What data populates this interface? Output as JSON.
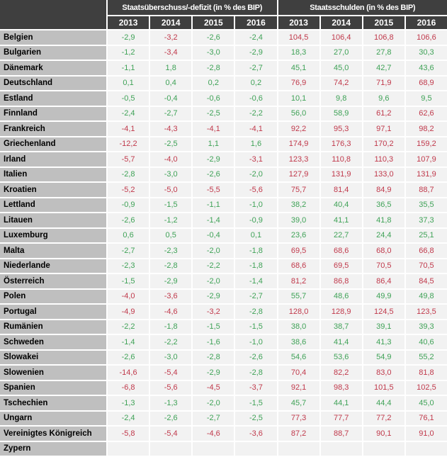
{
  "chart_data": {
    "type": "table",
    "group_headers": [
      "Staatsüberschuss/-defizit (in % des BIP)",
      "Staatsschulden (in % des BIP)"
    ],
    "years": [
      "2013",
      "2014",
      "2015",
      "2016"
    ],
    "color_rules": {
      "deficit_red_if_below": -3.0,
      "debt_red_if_above": 60.0
    },
    "rows": [
      {
        "country": "Belgien",
        "deficit": [
          "-2,9",
          "-3,2",
          "-2,6",
          "-2,4"
        ],
        "debt": [
          "104,5",
          "106,4",
          "106,8",
          "106,6"
        ]
      },
      {
        "country": "Bulgarien",
        "deficit": [
          "-1,2",
          "-3,4",
          "-3,0",
          "-2,9"
        ],
        "debt": [
          "18,3",
          "27,0",
          "27,8",
          "30,3"
        ]
      },
      {
        "country": "Dänemark",
        "deficit": [
          "-1,1",
          "1,8",
          "-2,8",
          "-2,7"
        ],
        "debt": [
          "45,1",
          "45,0",
          "42,7",
          "43,6"
        ]
      },
      {
        "country": "Deutschland",
        "deficit": [
          "0,1",
          "0,4",
          "0,2",
          "0,2"
        ],
        "debt": [
          "76,9",
          "74,2",
          "71,9",
          "68,9"
        ]
      },
      {
        "country": "Estland",
        "deficit": [
          "-0,5",
          "-0,4",
          "-0,6",
          "-0,6"
        ],
        "debt": [
          "10,1",
          "9,8",
          "9,6",
          "9,5"
        ]
      },
      {
        "country": "Finnland",
        "deficit": [
          "-2,4",
          "-2,7",
          "-2,5",
          "-2,2"
        ],
        "debt": [
          "56,0",
          "58,9",
          "61,2",
          "62,6"
        ]
      },
      {
        "country": "Frankreich",
        "deficit": [
          "-4,1",
          "-4,3",
          "-4,1",
          "-4,1"
        ],
        "debt": [
          "92,2",
          "95,3",
          "97,1",
          "98,2"
        ]
      },
      {
        "country": "Griechenland",
        "deficit": [
          "-12,2",
          "-2,5",
          "1,1",
          "1,6"
        ],
        "debt": [
          "174,9",
          "176,3",
          "170,2",
          "159,2"
        ]
      },
      {
        "country": "Irland",
        "deficit": [
          "-5,7",
          "-4,0",
          "-2,9",
          "-3,1"
        ],
        "debt": [
          "123,3",
          "110,8",
          "110,3",
          "107,9"
        ]
      },
      {
        "country": "Italien",
        "deficit": [
          "-2,8",
          "-3,0",
          "-2,6",
          "-2,0"
        ],
        "debt": [
          "127,9",
          "131,9",
          "133,0",
          "131,9"
        ]
      },
      {
        "country": "Kroatien",
        "deficit": [
          "-5,2",
          "-5,0",
          "-5,5",
          "-5,6"
        ],
        "debt": [
          "75,7",
          "81,4",
          "84,9",
          "88,7"
        ]
      },
      {
        "country": "Lettland",
        "deficit": [
          "-0,9",
          "-1,5",
          "-1,1",
          "-1,0"
        ],
        "debt": [
          "38,2",
          "40,4",
          "36,5",
          "35,5"
        ]
      },
      {
        "country": "Litauen",
        "deficit": [
          "-2,6",
          "-1,2",
          "-1,4",
          "-0,9"
        ],
        "debt": [
          "39,0",
          "41,1",
          "41,8",
          "37,3"
        ]
      },
      {
        "country": "Luxemburg",
        "deficit": [
          "0,6",
          "0,5",
          "-0,4",
          "0,1"
        ],
        "debt": [
          "23,6",
          "22,7",
          "24,4",
          "25,1"
        ]
      },
      {
        "country": "Malta",
        "deficit": [
          "-2,7",
          "-2,3",
          "-2,0",
          "-1,8"
        ],
        "debt": [
          "69,5",
          "68,6",
          "68,0",
          "66,8"
        ]
      },
      {
        "country": "Niederlande",
        "deficit": [
          "-2,3",
          "-2,8",
          "-2,2",
          "-1,8"
        ],
        "debt": [
          "68,6",
          "69,5",
          "70,5",
          "70,5"
        ]
      },
      {
        "country": "Österreich",
        "deficit": [
          "-1,5",
          "-2,9",
          "-2,0",
          "-1,4"
        ],
        "debt": [
          "81,2",
          "86,8",
          "86,4",
          "84,5"
        ]
      },
      {
        "country": "Polen",
        "deficit": [
          "-4,0",
          "-3,6",
          "-2,9",
          "-2,7"
        ],
        "debt": [
          "55,7",
          "48,6",
          "49,9",
          "49,8"
        ]
      },
      {
        "country": "Portugal",
        "deficit": [
          "-4,9",
          "-4,6",
          "-3,2",
          "-2,8"
        ],
        "debt": [
          "128,0",
          "128,9",
          "124,5",
          "123,5"
        ]
      },
      {
        "country": "Rumänien",
        "deficit": [
          "-2,2",
          "-1,8",
          "-1,5",
          "-1,5"
        ],
        "debt": [
          "38,0",
          "38,7",
          "39,1",
          "39,3"
        ]
      },
      {
        "country": "Schweden",
        "deficit": [
          "-1,4",
          "-2,2",
          "-1,6",
          "-1,0"
        ],
        "debt": [
          "38,6",
          "41,4",
          "41,3",
          "40,6"
        ]
      },
      {
        "country": "Slowakei",
        "deficit": [
          "-2,6",
          "-3,0",
          "-2,8",
          "-2,6"
        ],
        "debt": [
          "54,6",
          "53,6",
          "54,9",
          "55,2"
        ]
      },
      {
        "country": "Slowenien",
        "deficit": [
          "-14,6",
          "-5,4",
          "-2,9",
          "-2,8"
        ],
        "debt": [
          "70,4",
          "82,2",
          "83,0",
          "81,8"
        ]
      },
      {
        "country": "Spanien",
        "deficit": [
          "-6,8",
          "-5,6",
          "-4,5",
          "-3,7"
        ],
        "debt": [
          "92,1",
          "98,3",
          "101,5",
          "102,5"
        ]
      },
      {
        "country": "Tschechien",
        "deficit": [
          "-1,3",
          "-1,3",
          "-2,0",
          "-1,5"
        ],
        "debt": [
          "45,7",
          "44,1",
          "44,4",
          "45,0"
        ]
      },
      {
        "country": "Ungarn",
        "deficit": [
          "-2,4",
          "-2,6",
          "-2,7",
          "-2,5"
        ],
        "debt": [
          "77,3",
          "77,7",
          "77,2",
          "76,1"
        ]
      },
      {
        "country": "Vereinigtes Königreich",
        "deficit": [
          "-5,8",
          "-5,4",
          "-4,6",
          "-3,6"
        ],
        "debt": [
          "87,2",
          "88,7",
          "90,1",
          "91,0"
        ]
      }
    ],
    "partial_next_row": {
      "country": "Zypern",
      "deficit": [
        "",
        "",
        "",
        ""
      ],
      "debt": [
        "",
        "",
        "",
        ""
      ]
    }
  },
  "colors": {
    "header_bg": "#3f3f3f",
    "country_bg": "#bfbfbf",
    "cell_bg": "#f2f2f2",
    "positive_green": "#3fa257",
    "negative_red": "#c0394b",
    "grid_white": "#ffffff"
  }
}
